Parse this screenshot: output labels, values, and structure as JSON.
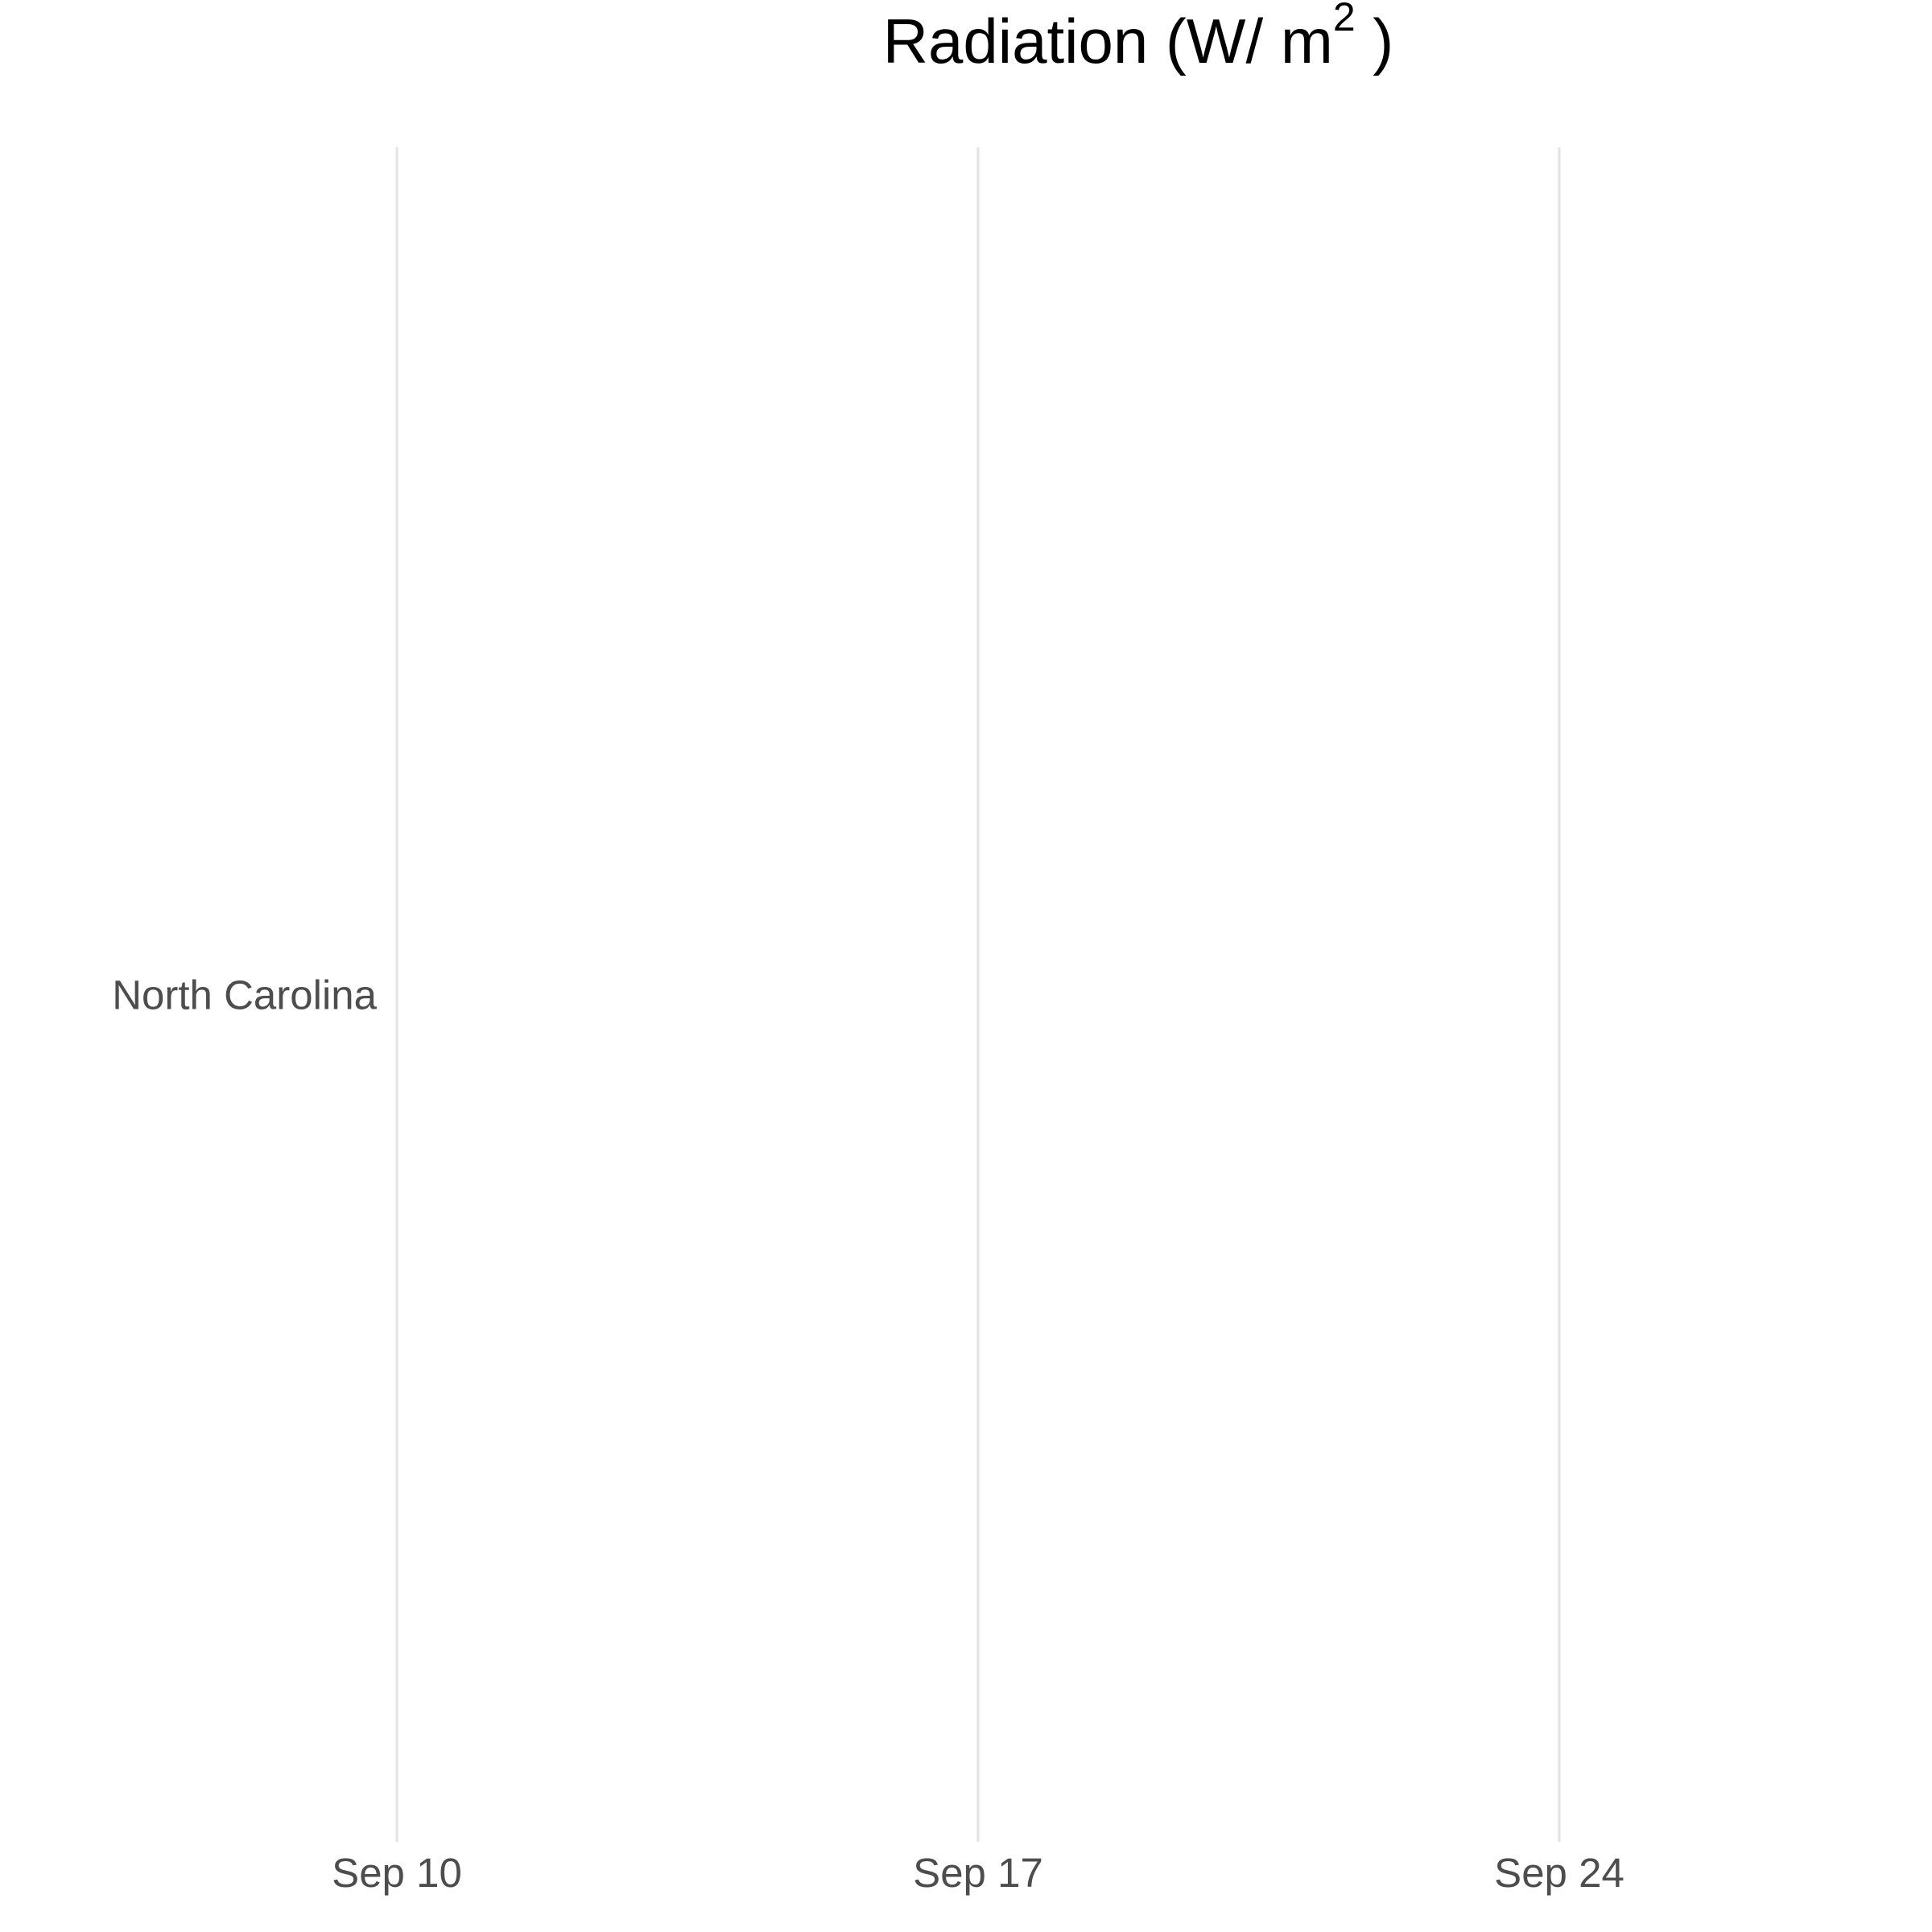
{
  "chart_data": {
    "type": "heatmap",
    "title": {
      "main": "Radiation (W/  m",
      "superscript": "2",
      "closing": " )"
    },
    "xlabel": "",
    "ylabel": "",
    "x_axis": {
      "type": "date",
      "range": [
        "2023-09-10",
        "2023-09-28"
      ],
      "ticks": [
        {
          "value": "2023-09-10",
          "label": "Sep 10"
        },
        {
          "value": "2023-09-17",
          "label": "Sep 17"
        },
        {
          "value": "2023-09-24",
          "label": "Sep 24"
        }
      ]
    },
    "categories": [
      "North Carolina"
    ],
    "series": [],
    "grid": "vertical-major",
    "legend": "none"
  },
  "colors": {
    "background": "#ffffff",
    "gridline": "#e3e3e3",
    "tick_text": "#4d4d4d",
    "title_text": "#000000"
  }
}
